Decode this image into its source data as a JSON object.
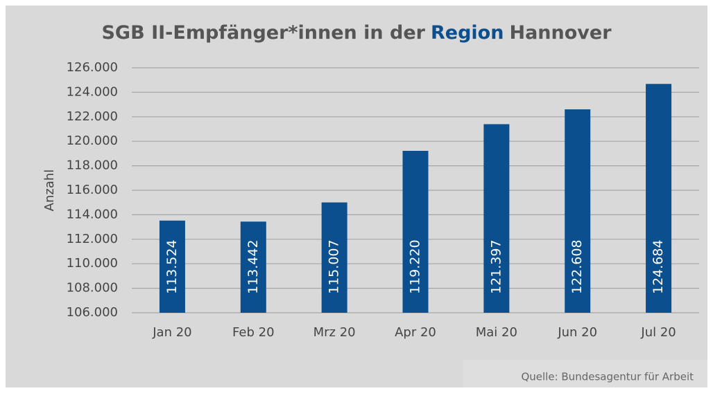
{
  "chart_data": {
    "type": "bar",
    "title": [
      "SGB II-Empfänger*innen in der",
      "Region",
      "Hannover"
    ],
    "title_colors": [
      "#555555",
      "#0b4f8f",
      "#555555"
    ],
    "y_label": "Anzahl",
    "source": "Quelle: Bundesagentur für Arbeit",
    "categories": [
      "Jan 20",
      "Feb 20",
      "Mrz 20",
      "Apr 20",
      "Mai 20",
      "Jun 20",
      "Jul 20"
    ],
    "values": [
      113524,
      113442,
      115007,
      119220,
      121397,
      122608,
      124684
    ],
    "value_labels": [
      "113.524",
      "113.442",
      "115.007",
      "119.220",
      "121.397",
      "122.608",
      "124.684"
    ],
    "color": "#0b4f8f",
    "ylim": [
      106000,
      126000
    ],
    "yticks": [
      {
        "value": 106000,
        "label": "106.000"
      },
      {
        "value": 108000,
        "label": "108.000"
      },
      {
        "value": 110000,
        "label": "110.000"
      },
      {
        "value": 112000,
        "label": "112.000"
      },
      {
        "value": 114000,
        "label": "114.000"
      },
      {
        "value": 116000,
        "label": "116.000"
      },
      {
        "value": 118000,
        "label": "118.000"
      },
      {
        "value": 120000,
        "label": "120.000"
      },
      {
        "value": 122000,
        "label": "122.000"
      },
      {
        "value": 124000,
        "label": "124.000"
      },
      {
        "value": 126000,
        "label": "126.000"
      }
    ],
    "grid": true
  }
}
